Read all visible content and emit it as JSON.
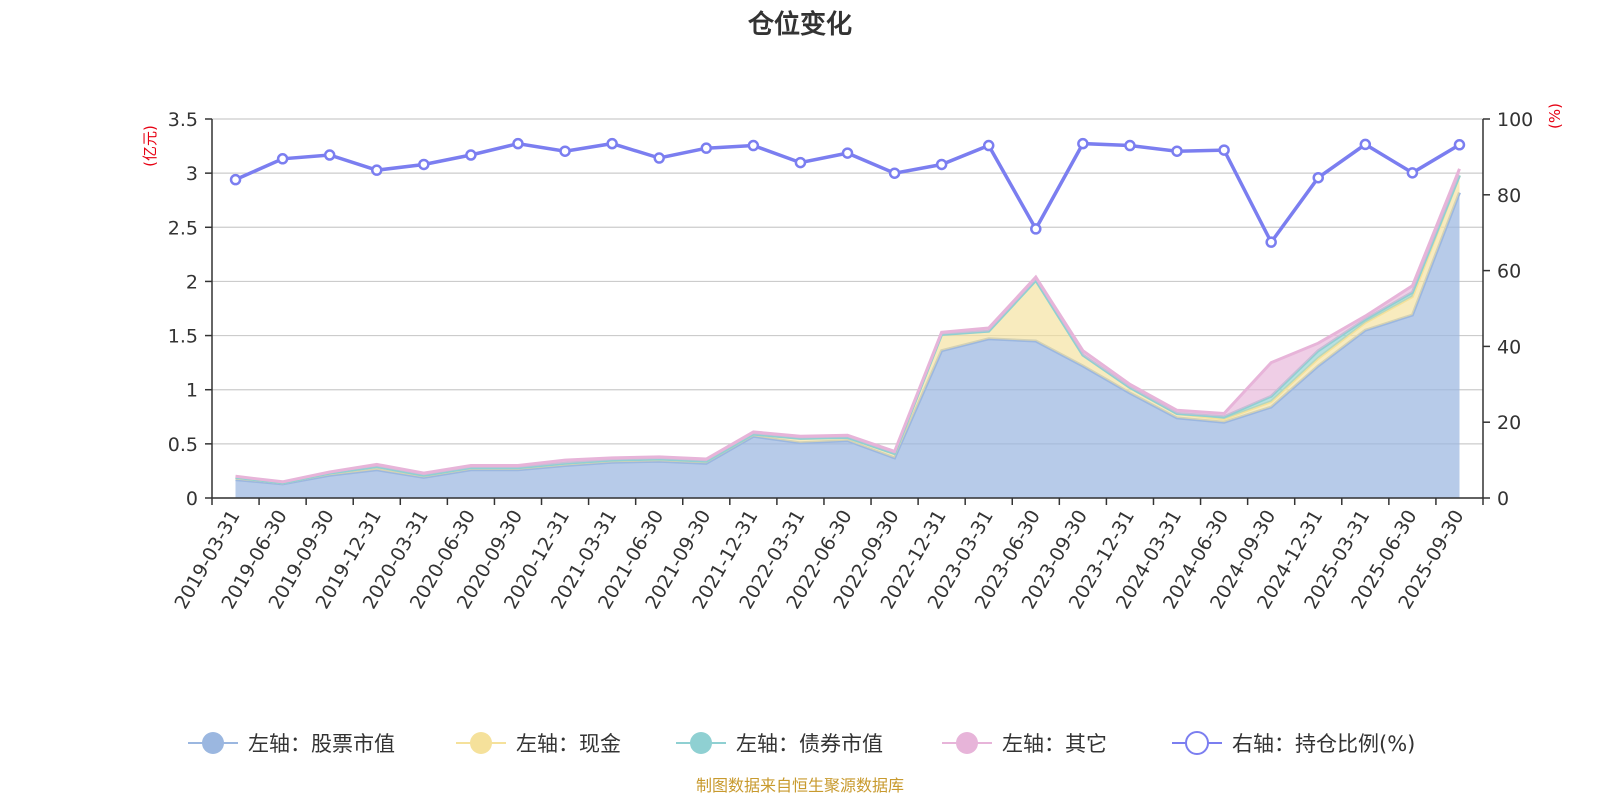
{
  "page": {
    "title": "仓位变化",
    "footer": "制图数据来自恒生聚源数据库"
  },
  "colors": {
    "stock": "#9bb7e0",
    "cash": "#f5e19b",
    "bond": "#8fd0d2",
    "other": "#e7b4d9",
    "ratio": "#7b7ef0",
    "unit_label": "#e60012"
  },
  "chart_data": {
    "type": "area",
    "title": "仓位变化",
    "left_axis": {
      "unit": "(亿元)",
      "range": [
        0,
        3.5
      ],
      "ticks": [
        "0",
        "0.5",
        "1",
        "1.5",
        "2",
        "2.5",
        "3",
        "3.5"
      ]
    },
    "right_axis": {
      "unit": "(%)",
      "range": [
        0,
        100
      ],
      "ticks": [
        "0",
        "20",
        "40",
        "60",
        "80",
        "100"
      ]
    },
    "grid": true,
    "legend_position": "bottom",
    "x": [
      "2019-03-31",
      "2019-06-30",
      "2019-09-30",
      "2019-12-31",
      "2020-03-31",
      "2020-06-30",
      "2020-09-30",
      "2020-12-31",
      "2021-03-31",
      "2021-06-30",
      "2021-09-30",
      "2021-12-31",
      "2022-03-31",
      "2022-06-30",
      "2022-09-30",
      "2022-12-31",
      "2023-03-31",
      "2023-06-30",
      "2023-09-30",
      "2023-12-31",
      "2024-03-31",
      "2024-06-30",
      "2024-09-30",
      "2024-12-31",
      "2025-03-31",
      "2025-06-30",
      "2025-09-30"
    ],
    "series": [
      {
        "name": "左轴：股票市值",
        "key": "stock",
        "axis": "left",
        "stacked": true,
        "values": [
          0.17,
          0.13,
          0.21,
          0.26,
          0.19,
          0.26,
          0.26,
          0.3,
          0.33,
          0.34,
          0.32,
          0.57,
          0.51,
          0.53,
          0.37,
          1.36,
          1.47,
          1.45,
          1.22,
          0.97,
          0.74,
          0.7,
          0.84,
          1.22,
          1.55,
          1.69,
          2.82
        ]
      },
      {
        "name": "左轴：现金",
        "key": "cash",
        "axis": "left",
        "stacked": true,
        "values": [
          0.02,
          0.01,
          0.02,
          0.03,
          0.02,
          0.02,
          0.02,
          0.02,
          0.02,
          0.02,
          0.02,
          0.02,
          0.04,
          0.03,
          0.04,
          0.15,
          0.07,
          0.56,
          0.1,
          0.05,
          0.04,
          0.03,
          0.05,
          0.07,
          0.07,
          0.17,
          0.16
        ]
      },
      {
        "name": "左轴：债券市值",
        "key": "bond",
        "axis": "left",
        "stacked": true,
        "values": [
          0,
          0,
          0,
          0,
          0,
          0,
          0,
          0,
          0,
          0,
          0,
          0,
          0,
          0,
          0,
          0,
          0,
          0,
          0,
          0,
          0,
          0.02,
          0.05,
          0.07,
          0.03,
          0.04,
          0
        ]
      },
      {
        "name": "左轴：其它",
        "key": "other",
        "axis": "left",
        "stacked": true,
        "values": [
          0.01,
          0.01,
          0.01,
          0.02,
          0.02,
          0.02,
          0.02,
          0.03,
          0.02,
          0.02,
          0.02,
          0.02,
          0.02,
          0.02,
          0.02,
          0.02,
          0.03,
          0.03,
          0.04,
          0.03,
          0.03,
          0.03,
          0.31,
          0.07,
          0.03,
          0.06,
          0.06
        ]
      },
      {
        "name": "右轴：持仓比例(%)",
        "key": "ratio",
        "axis": "right",
        "stacked": false,
        "values": [
          84,
          89.5,
          90.5,
          86.5,
          88,
          90.5,
          93.5,
          91.5,
          93.5,
          89.7,
          92.3,
          93,
          88.5,
          91,
          85.7,
          88,
          93,
          71,
          93.5,
          93,
          91.5,
          91.8,
          67.5,
          84.5,
          93.3,
          85.8,
          93.2
        ]
      }
    ]
  }
}
